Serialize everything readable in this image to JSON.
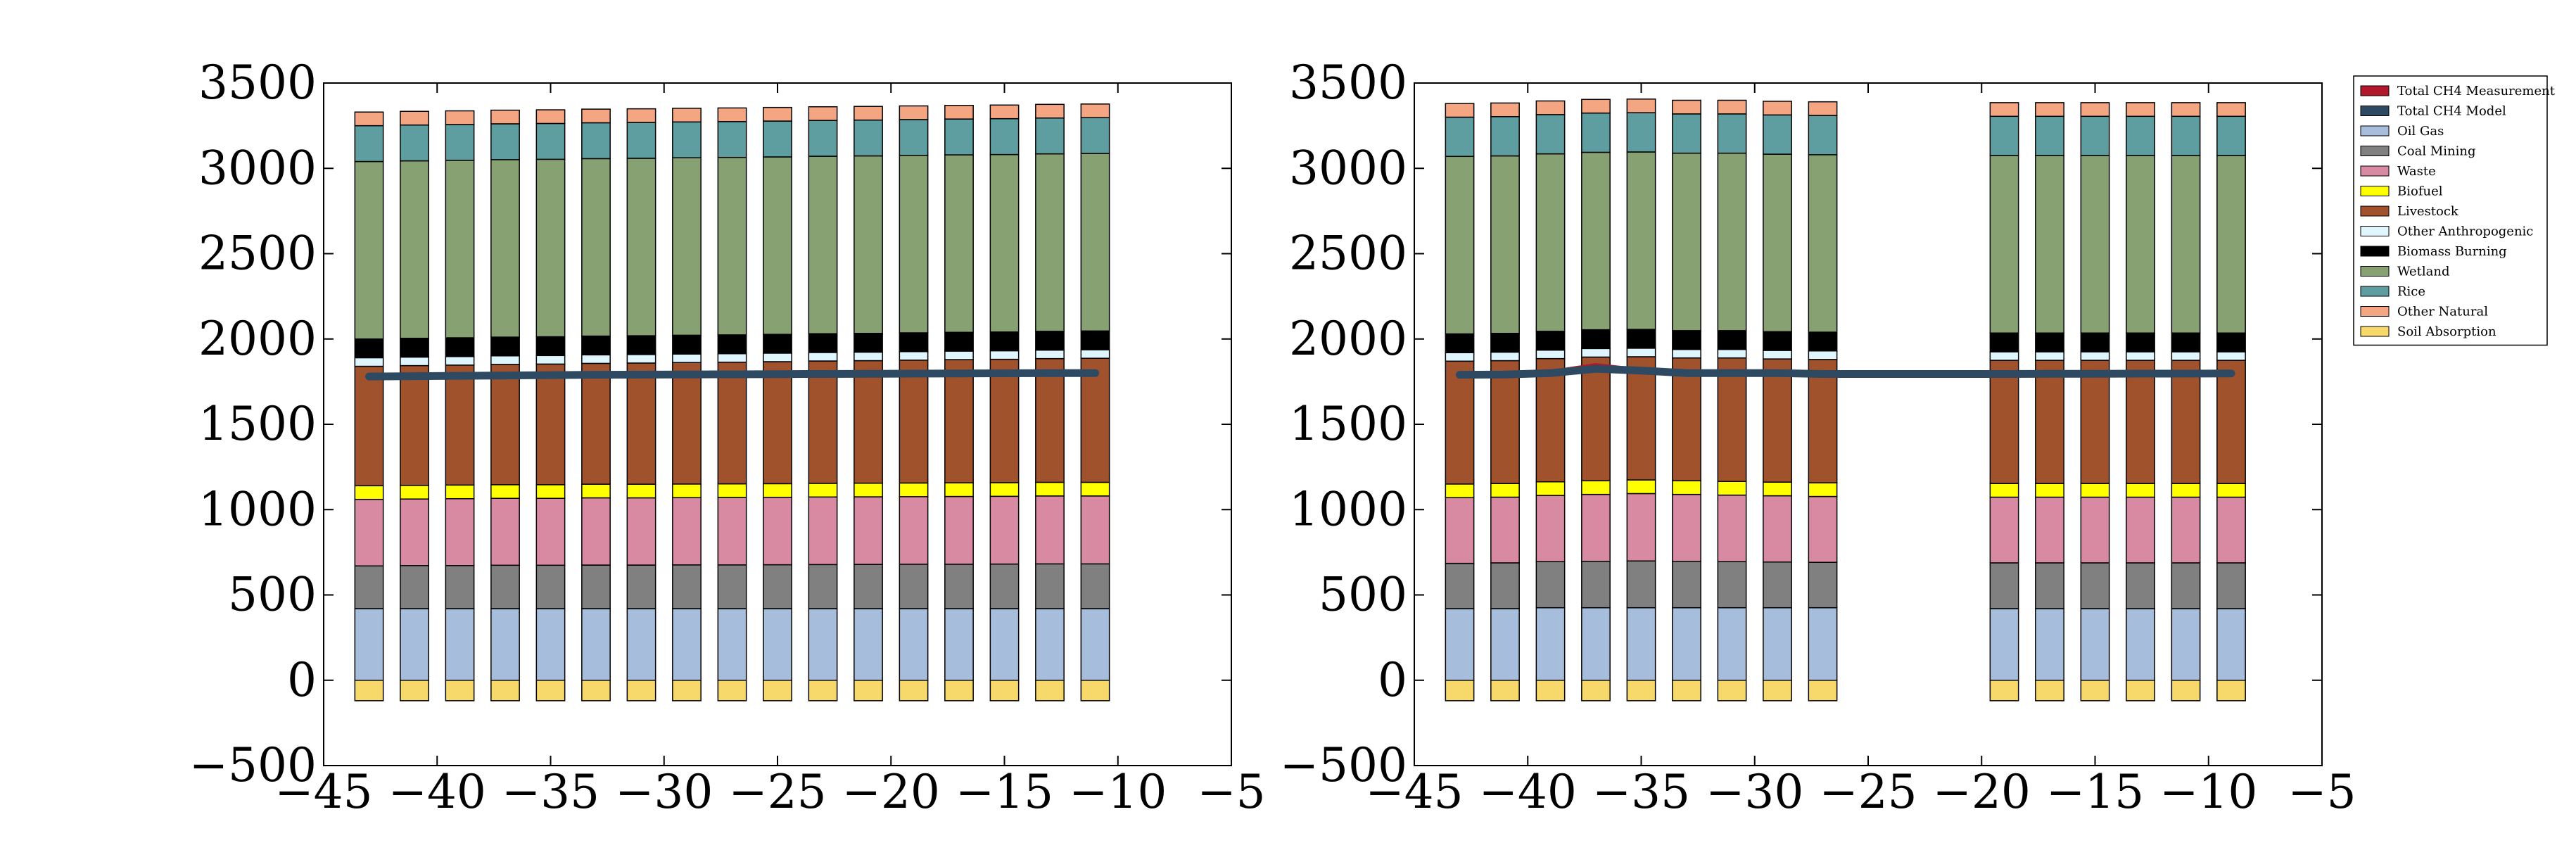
{
  "chart_data": [
    {
      "type": "bar",
      "stacked": true,
      "x": [
        -43,
        -41,
        -39,
        -37,
        -35,
        -33,
        -31,
        -29,
        -27,
        -25,
        -23,
        -21,
        -19,
        -17,
        -15,
        -13,
        -11
      ],
      "xlim": [
        -45,
        -5
      ],
      "ylim": [
        -500,
        3500
      ],
      "xticks": [
        -45,
        -40,
        -35,
        -30,
        -25,
        -20,
        -15,
        -10,
        -5
      ],
      "xtick_labels": [
        "−45",
        "−40",
        "−35",
        "−30",
        "−25",
        "−20",
        "−15",
        "−10",
        "−5"
      ],
      "yticks": [
        -500,
        0,
        500,
        1000,
        1500,
        2000,
        2500,
        3000,
        3500
      ],
      "ytick_labels": [
        "−500",
        "0",
        "500",
        "1000",
        "1500",
        "2000",
        "2500",
        "3000",
        "3500"
      ],
      "grid": false,
      "negative_series": [
        {
          "name": "Soil Absorption",
          "values": [
            -120,
            -120,
            -120,
            -120,
            -120,
            -120,
            -120,
            -120,
            -120,
            -120,
            -120,
            -120,
            -120,
            -120,
            -120,
            -120,
            -120
          ]
        }
      ],
      "series": [
        {
          "name": "Oil Gas",
          "values": [
            420,
            420,
            420,
            420,
            420,
            420,
            420,
            420,
            420,
            420,
            420,
            420,
            420,
            420,
            420,
            420,
            420
          ]
        },
        {
          "name": "Coal Mining",
          "values": [
            250,
            252,
            252,
            254,
            254,
            255,
            255,
            256,
            256,
            257,
            258,
            259,
            260,
            260,
            261,
            262,
            262
          ]
        },
        {
          "name": "Waste",
          "values": [
            390,
            390,
            392,
            392,
            392,
            394,
            394,
            394,
            395,
            395,
            396,
            396,
            396,
            397,
            397,
            398,
            398
          ]
        },
        {
          "name": "Biofuel",
          "values": [
            80,
            80,
            80,
            80,
            80,
            80,
            80,
            80,
            80,
            80,
            80,
            80,
            80,
            80,
            80,
            80,
            80
          ]
        },
        {
          "name": "Livestock",
          "values": [
            700,
            702,
            703,
            705,
            707,
            708,
            710,
            712,
            713,
            715,
            717,
            718,
            720,
            722,
            723,
            725,
            727
          ]
        },
        {
          "name": "Other Anthropogenic",
          "values": [
            50,
            50,
            50,
            50,
            50,
            50,
            50,
            50,
            50,
            50,
            50,
            50,
            50,
            50,
            50,
            50,
            50
          ]
        },
        {
          "name": "Biomass Burning",
          "values": [
            110,
            110,
            110,
            110,
            110,
            110,
            110,
            110,
            110,
            110,
            110,
            110,
            110,
            110,
            110,
            110,
            110
          ]
        },
        {
          "name": "Wetland",
          "values": [
            1040,
            1040,
            1040,
            1040,
            1040,
            1040,
            1040,
            1040,
            1040,
            1040,
            1040,
            1040,
            1040,
            1040,
            1040,
            1040,
            1040
          ]
        },
        {
          "name": "Rice",
          "values": [
            210,
            210,
            210,
            210,
            210,
            210,
            210,
            210,
            210,
            210,
            210,
            210,
            210,
            210,
            210,
            210,
            210
          ]
        },
        {
          "name": "Other Natural",
          "values": [
            80,
            80,
            80,
            80,
            80,
            80,
            80,
            80,
            80,
            80,
            80,
            80,
            80,
            80,
            80,
            80,
            80
          ]
        }
      ],
      "lines": [
        {
          "name": "Total CH4 Measurement",
          "values": [
            1780,
            1782,
            1784,
            1786,
            1788,
            1790,
            1791,
            1792,
            1793,
            1794,
            1795,
            1796,
            1797,
            1798,
            1799,
            1800,
            1800
          ]
        },
        {
          "name": "Total CH4 Model",
          "values": [
            1780,
            1782,
            1784,
            1786,
            1788,
            1790,
            1791,
            1792,
            1793,
            1794,
            1795,
            1796,
            1797,
            1798,
            1799,
            1800,
            1800
          ]
        }
      ]
    },
    {
      "type": "bar",
      "stacked": true,
      "x": [
        -43,
        -41,
        -39,
        -37,
        -35,
        -33,
        -31,
        -29,
        -27,
        -19,
        -17,
        -15,
        -13,
        -11,
        -9
      ],
      "xlim": [
        -45,
        -5
      ],
      "ylim": [
        -500,
        3500
      ],
      "xticks": [
        -45,
        -40,
        -35,
        -30,
        -25,
        -20,
        -15,
        -10,
        -5
      ],
      "xtick_labels": [
        "−45",
        "−40",
        "−35",
        "−30",
        "−25",
        "−20",
        "−15",
        "−10",
        "−5"
      ],
      "yticks": [
        -500,
        0,
        500,
        1000,
        1500,
        2000,
        2500,
        3000,
        3500
      ],
      "ytick_labels": [
        "−500",
        "0",
        "500",
        "1000",
        "1500",
        "2000",
        "2500",
        "3000",
        "3500"
      ],
      "grid": false,
      "negative_series": [
        {
          "name": "Soil Absorption",
          "values": [
            -120,
            -120,
            -120,
            -120,
            -120,
            -120,
            -120,
            -120,
            -120,
            -120,
            -120,
            -120,
            -120,
            -120,
            -120
          ]
        }
      ],
      "series": [
        {
          "name": "Oil Gas",
          "values": [
            420,
            420,
            425,
            425,
            425,
            425,
            425,
            425,
            425,
            420,
            420,
            420,
            420,
            420,
            420
          ]
        },
        {
          "name": "Coal Mining",
          "values": [
            265,
            268,
            270,
            272,
            274,
            272,
            270,
            268,
            266,
            268,
            268,
            268,
            268,
            268,
            268
          ]
        },
        {
          "name": "Waste",
          "values": [
            385,
            385,
            388,
            392,
            395,
            392,
            390,
            388,
            386,
            385,
            385,
            385,
            385,
            385,
            385
          ]
        },
        {
          "name": "Biofuel",
          "values": [
            80,
            80,
            80,
            80,
            80,
            80,
            80,
            80,
            80,
            80,
            80,
            80,
            80,
            80,
            80
          ]
        },
        {
          "name": "Livestock",
          "values": [
            720,
            720,
            722,
            725,
            722,
            720,
            724,
            722,
            723,
            722,
            722,
            722,
            722,
            722,
            722
          ]
        },
        {
          "name": "Other Anthropogenic",
          "values": [
            50,
            50,
            50,
            50,
            50,
            50,
            50,
            50,
            50,
            50,
            50,
            50,
            50,
            50,
            50
          ]
        },
        {
          "name": "Biomass Burning",
          "values": [
            110,
            110,
            110,
            110,
            110,
            110,
            110,
            110,
            110,
            110,
            110,
            110,
            110,
            110,
            110
          ]
        },
        {
          "name": "Wetland",
          "values": [
            1040,
            1040,
            1040,
            1040,
            1040,
            1040,
            1040,
            1040,
            1040,
            1040,
            1040,
            1040,
            1040,
            1040,
            1040
          ]
        },
        {
          "name": "Rice",
          "values": [
            230,
            230,
            230,
            230,
            230,
            230,
            230,
            230,
            230,
            230,
            230,
            230,
            230,
            230,
            230
          ]
        },
        {
          "name": "Other Natural",
          "values": [
            80,
            80,
            80,
            80,
            80,
            80,
            80,
            80,
            80,
            80,
            80,
            80,
            80,
            80,
            80
          ]
        }
      ],
      "lines": [
        {
          "name": "Total CH4 Measurement",
          "values": [
            1790,
            1792,
            1800,
            1840,
            1810,
            1800,
            1805,
            1800,
            1795,
            1795,
            1796,
            1796,
            1797,
            1797,
            1798
          ]
        },
        {
          "name": "Total CH4 Model",
          "values": [
            1790,
            1792,
            1800,
            1825,
            1815,
            1800,
            1800,
            1800,
            1795,
            1795,
            1796,
            1796,
            1797,
            1797,
            1798
          ]
        }
      ]
    }
  ],
  "legend": {
    "placement": "outside-top-right",
    "entries": [
      {
        "label": "Total CH4 Measurement",
        "color": "#b2182b"
      },
      {
        "label": "Total CH4 Model",
        "color": "#2e4a62"
      },
      {
        "label": "Oil  Gas",
        "color": "#a6bddb"
      },
      {
        "label": "Coal Mining",
        "color": "#808080"
      },
      {
        "label": "Waste",
        "color": "#d98aa3"
      },
      {
        "label": "Biofuel",
        "color": "#ffff00"
      },
      {
        "label": "Livestock",
        "color": "#a0522d"
      },
      {
        "label": "Other Anthropogenic",
        "color": "#dff6ff"
      },
      {
        "label": "Biomass Burning",
        "color": "#000000"
      },
      {
        "label": "Wetland",
        "color": "#87a173"
      },
      {
        "label": "Rice",
        "color": "#5f9ea0"
      },
      {
        "label": "Other Natural",
        "color": "#f4a582"
      },
      {
        "label": "Soil Absorption",
        "color": "#f7d96b"
      }
    ]
  },
  "colors": {
    "Oil Gas": "#a6bddb",
    "Coal Mining": "#808080",
    "Waste": "#d98aa3",
    "Biofuel": "#ffff00",
    "Livestock": "#a0522d",
    "Other Anthropogenic": "#dff6ff",
    "Biomass Burning": "#000000",
    "Wetland": "#87a173",
    "Rice": "#5f9ea0",
    "Other Natural": "#f4a582",
    "Soil Absorption": "#f7d96b",
    "Total CH4 Measurement": "#b2182b",
    "Total CH4 Model": "#2e4a62"
  }
}
